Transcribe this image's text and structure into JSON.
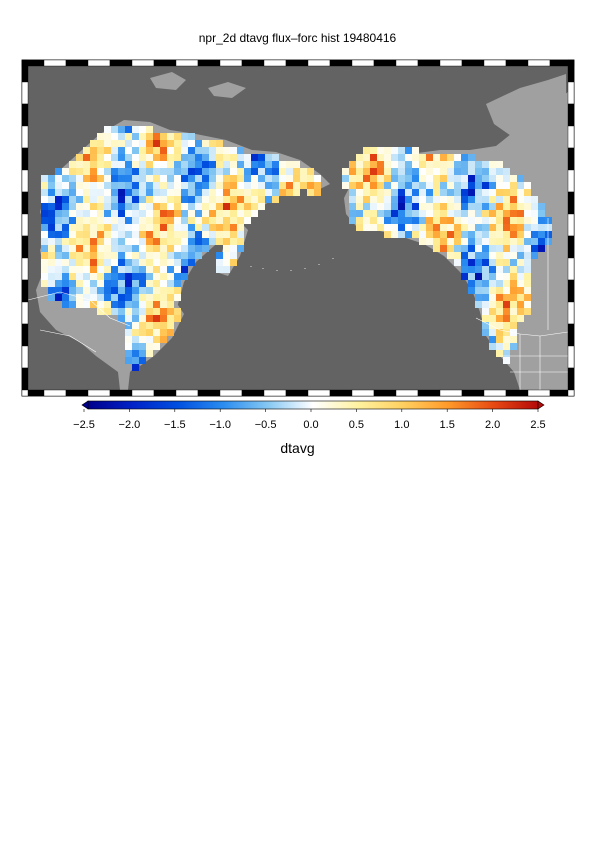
{
  "title": "npr_2d dtavg flux–forc hist 19480416",
  "colorbar": {
    "label": "dtavg",
    "ticks": [
      "−2.5",
      "−2.0",
      "−1.5",
      "−1.0",
      "−0.5",
      "0.0",
      "0.5",
      "1.0",
      "1.5",
      "2.0",
      "2.5"
    ],
    "range": [
      -2.5,
      2.5
    ],
    "colors": [
      "#00008c",
      "#0022c8",
      "#0050e0",
      "#2a8cf0",
      "#86c8f2",
      "#ffffff",
      "#fff2a0",
      "#ffd060",
      "#ff9a2a",
      "#e84a12",
      "#b40a0a"
    ]
  },
  "colors": {
    "ocean": "#636363",
    "land": "#a0a0a0"
  }
}
